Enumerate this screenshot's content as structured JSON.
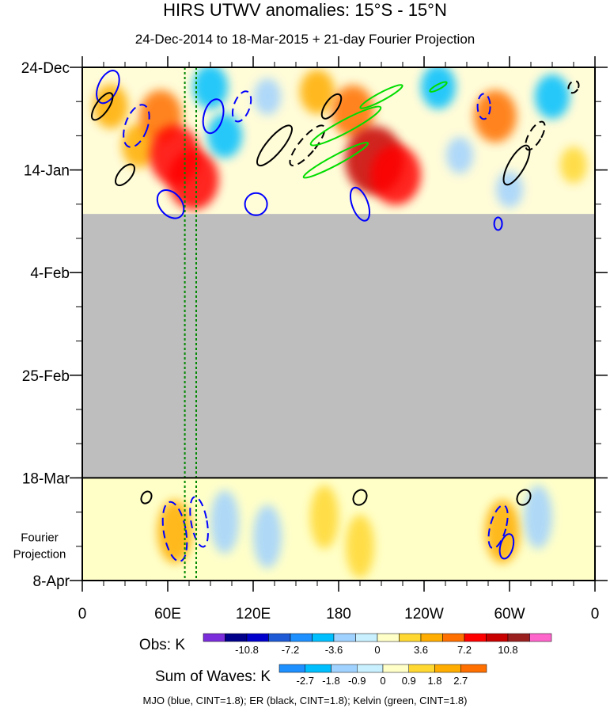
{
  "chart_data": {
    "type": "heatmap",
    "title": "HIRS UTWV anomalies: 15°S - 15°N",
    "subtitle": "24-Dec-2014 to 18-Mar-2015 + 21-day Fourier Projection",
    "x_ticks": [
      {
        "lon": 0,
        "label": "0"
      },
      {
        "lon": 60,
        "label": "60E"
      },
      {
        "lon": 120,
        "label": "120E"
      },
      {
        "lon": 180,
        "label": "180"
      },
      {
        "lon": 240,
        "label": "120W"
      },
      {
        "lon": 300,
        "label": "60W"
      },
      {
        "lon": 360,
        "label": "0"
      }
    ],
    "y_ticks": [
      {
        "day": 0,
        "label": "24-Dec"
      },
      {
        "day": 21,
        "label": "14-Jan"
      },
      {
        "day": 42,
        "label": "4-Feb"
      },
      {
        "day": 63,
        "label": "25-Feb"
      },
      {
        "day": 84,
        "label": "18-Mar"
      },
      {
        "day": 105,
        "label": "8-Apr"
      }
    ],
    "xlim": [
      0,
      360
    ],
    "ylim_days": [
      0,
      105
    ],
    "observed_end_day": 84,
    "data_gap_days": [
      30,
      84
    ],
    "fourier_label_lines": [
      "Fourier",
      "Projection"
    ],
    "reference_lines_lon": [
      72,
      80
    ],
    "colors": {
      "gap": "#bebebe",
      "mjo": "#0000ff",
      "er": "#000000",
      "kelvin": "#00dd00",
      "ref_line": "#008800"
    },
    "obs_legend": {
      "label": "Obs: K",
      "colors": [
        "#7b2ddb",
        "#00008b",
        "#0000cd",
        "#1e5ad6",
        "#1e90ff",
        "#00bfff",
        "#a0d2ff",
        "#c8f0ff",
        "#ffffc8",
        "#ffd832",
        "#ffad00",
        "#ff7000",
        "#ff0000",
        "#c80000",
        "#9a2020",
        "#ff66cc"
      ],
      "tick_labels": [
        "-10.8",
        "-7.2",
        "-3.6",
        "0",
        "3.6",
        "7.2",
        "10.8"
      ],
      "tick_boundaries": [
        2,
        4,
        6,
        8,
        10,
        12,
        14
      ]
    },
    "waves_legend": {
      "label": "Sum of Waves: K",
      "colors": [
        "#1e90ff",
        "#00bfff",
        "#a0d2ff",
        "#c8f0ff",
        "#ffffc8",
        "#ffd832",
        "#ffad00",
        "#ff7000"
      ],
      "tick_labels": [
        "-2.7",
        "-1.8",
        "-0.9",
        "0",
        "0.9",
        "1.8",
        "2.7"
      ],
      "tick_boundaries": [
        1,
        2,
        3,
        4,
        5,
        6,
        7
      ]
    },
    "footer": "MJO (blue, CINT=1.8); ER (black, CINT=1.8); Kelvin (green, CINT=1.8)",
    "anomaly_cells": [
      {
        "lon": 20,
        "day": 8,
        "sign": 1,
        "mag": 2
      },
      {
        "lon": 40,
        "day": 16,
        "sign": 1,
        "mag": 2
      },
      {
        "lon": 55,
        "day": 10,
        "sign": 1,
        "mag": 3
      },
      {
        "lon": 65,
        "day": 18,
        "sign": 1,
        "mag": 4
      },
      {
        "lon": 78,
        "day": 23,
        "sign": 1,
        "mag": 4
      },
      {
        "lon": 90,
        "day": 4,
        "sign": -1,
        "mag": 2
      },
      {
        "lon": 100,
        "day": 14,
        "sign": -1,
        "mag": 2
      },
      {
        "lon": 130,
        "day": 6,
        "sign": -1,
        "mag": 1
      },
      {
        "lon": 165,
        "day": 5,
        "sign": 1,
        "mag": 2
      },
      {
        "lon": 190,
        "day": 9,
        "sign": 1,
        "mag": 3
      },
      {
        "lon": 205,
        "day": 19,
        "sign": 1,
        "mag": 5
      },
      {
        "lon": 220,
        "day": 22,
        "sign": 1,
        "mag": 4
      },
      {
        "lon": 250,
        "day": 4,
        "sign": -1,
        "mag": 2
      },
      {
        "lon": 265,
        "day": 18,
        "sign": -1,
        "mag": 1
      },
      {
        "lon": 290,
        "day": 10,
        "sign": 1,
        "mag": 3
      },
      {
        "lon": 300,
        "day": 25,
        "sign": -1,
        "mag": 1
      },
      {
        "lon": 330,
        "day": 6,
        "sign": -1,
        "mag": 2
      },
      {
        "lon": 345,
        "day": 20,
        "sign": 1,
        "mag": 1
      }
    ],
    "wave_cells": [
      {
        "lon": 65,
        "day": 95,
        "sign": 1,
        "mag": 2
      },
      {
        "lon": 100,
        "day": 93,
        "sign": -1,
        "mag": 1
      },
      {
        "lon": 130,
        "day": 96,
        "sign": -1,
        "mag": 1
      },
      {
        "lon": 170,
        "day": 92,
        "sign": 1,
        "mag": 1
      },
      {
        "lon": 195,
        "day": 98,
        "sign": 1,
        "mag": 1
      },
      {
        "lon": 295,
        "day": 95,
        "sign": 1,
        "mag": 2
      },
      {
        "lon": 320,
        "day": 92,
        "sign": -1,
        "mag": 1
      }
    ],
    "mjo_contours": [
      {
        "lon": 18,
        "day": 4,
        "rx": 12,
        "ry": 22,
        "rot": 25,
        "dash": false
      },
      {
        "lon": 38,
        "day": 12,
        "rx": 14,
        "ry": 28,
        "rot": 20,
        "dash": true
      },
      {
        "lon": 62,
        "day": 28,
        "rx": 14,
        "ry": 20,
        "rot": -40,
        "dash": false
      },
      {
        "lon": 92,
        "day": 10,
        "rx": 12,
        "ry": 22,
        "rot": 15,
        "dash": false
      },
      {
        "lon": 112,
        "day": 8,
        "rx": 10,
        "ry": 20,
        "rot": 20,
        "dash": true
      },
      {
        "lon": 122,
        "day": 28,
        "rx": 14,
        "ry": 14,
        "rot": 0,
        "dash": false
      },
      {
        "lon": 195,
        "day": 28,
        "rx": 10,
        "ry": 22,
        "rot": -20,
        "dash": false
      },
      {
        "lon": 282,
        "day": 8,
        "rx": 8,
        "ry": 16,
        "rot": 0,
        "dash": true
      },
      {
        "lon": 292,
        "day": 32,
        "rx": 5,
        "ry": 8,
        "rot": 0,
        "dash": false
      },
      {
        "lon": 65,
        "day": 95,
        "rx": 14,
        "ry": 38,
        "rot": -10,
        "dash": true
      },
      {
        "lon": 82,
        "day": 93,
        "rx": 10,
        "ry": 32,
        "rot": -10,
        "dash": true
      },
      {
        "lon": 292,
        "day": 94,
        "rx": 10,
        "ry": 28,
        "rot": 15,
        "dash": true
      },
      {
        "lon": 298,
        "day": 98,
        "rx": 8,
        "ry": 16,
        "rot": 15,
        "dash": false
      }
    ],
    "er_contours": [
      {
        "lon": 14,
        "day": 8,
        "rx": 8,
        "ry": 20,
        "rot": 35,
        "dash": false
      },
      {
        "lon": 30,
        "day": 22,
        "rx": 8,
        "ry": 16,
        "rot": 40,
        "dash": false
      },
      {
        "lon": 135,
        "day": 16,
        "rx": 10,
        "ry": 32,
        "rot": 40,
        "dash": false
      },
      {
        "lon": 158,
        "day": 16,
        "rx": 10,
        "ry": 32,
        "rot": 40,
        "dash": true
      },
      {
        "lon": 175,
        "day": 8,
        "rx": 8,
        "ry": 18,
        "rot": 35,
        "dash": false
      },
      {
        "lon": 305,
        "day": 20,
        "rx": 10,
        "ry": 28,
        "rot": 30,
        "dash": false
      },
      {
        "lon": 318,
        "day": 14,
        "rx": 8,
        "ry": 20,
        "rot": 30,
        "dash": true
      },
      {
        "lon": 345,
        "day": 4,
        "rx": 6,
        "ry": 8,
        "rot": 30,
        "dash": true
      },
      {
        "lon": 45,
        "day": 88,
        "rx": 6,
        "ry": 8,
        "rot": 30,
        "dash": false
      },
      {
        "lon": 195,
        "day": 88,
        "rx": 8,
        "ry": 10,
        "rot": 30,
        "dash": false
      },
      {
        "lon": 310,
        "day": 88,
        "rx": 8,
        "ry": 10,
        "rot": 30,
        "dash": false
      }
    ],
    "kelvin_contours": [
      {
        "lon": 185,
        "day": 12,
        "rx": 8,
        "ry": 50,
        "rot": 62,
        "dash": false
      },
      {
        "lon": 178,
        "day": 19,
        "rx": 6,
        "ry": 46,
        "rot": 62,
        "dash": false
      },
      {
        "lon": 210,
        "day": 6,
        "rx": 5,
        "ry": 30,
        "rot": 62,
        "dash": false
      },
      {
        "lon": 250,
        "day": 4,
        "rx": 3,
        "ry": 12,
        "rot": 62,
        "dash": false
      }
    ]
  }
}
